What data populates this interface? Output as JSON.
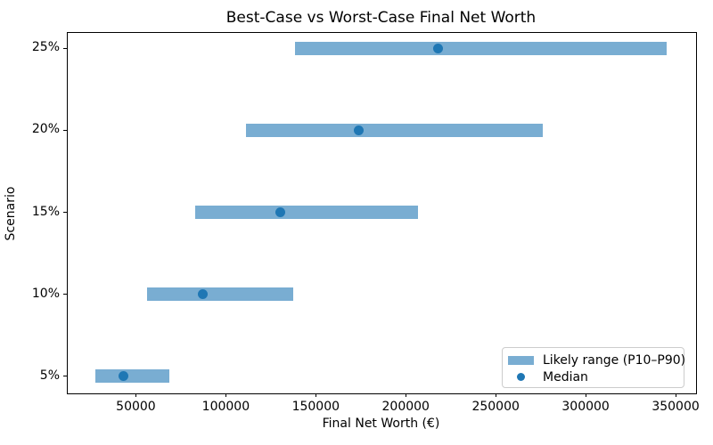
{
  "chart_data": {
    "type": "bar",
    "orientation": "horizontal",
    "title": "Best-Case vs Worst-Case Final Net Worth",
    "xlabel": "Final Net Worth (€)",
    "ylabel": "Scenario",
    "categories": [
      "5%",
      "10%",
      "15%",
      "20%",
      "25%"
    ],
    "series": [
      {
        "name": "P10",
        "values": [
          27500,
          56000,
          83000,
          111000,
          138500
        ]
      },
      {
        "name": "Median",
        "values": [
          43000,
          87000,
          130500,
          174000,
          218000
        ]
      },
      {
        "name": "P90",
        "values": [
          68500,
          137500,
          207000,
          276000,
          345000
        ]
      }
    ],
    "x_ticks": [
      50000,
      100000,
      150000,
      200000,
      250000,
      300000,
      350000
    ],
    "xlim": [
      11625,
      360875
    ],
    "ylim": [
      -0.2,
      4.2
    ],
    "grid": false,
    "legend_position": "lower right"
  },
  "legend": {
    "range_label": "Likely range (P10–P90)",
    "median_label": "Median"
  },
  "colors": {
    "bar_fill": "#79add2",
    "median_dot": "#1f77b4",
    "axis": "#000000",
    "legend_border": "#cccccc"
  }
}
